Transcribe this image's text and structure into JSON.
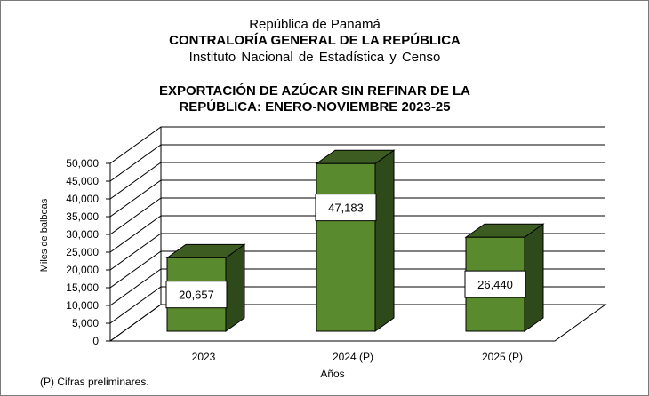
{
  "header": {
    "line1": "República de Panamá",
    "line2": "CONTRALORÍA GENERAL DE LA REPÚBLICA",
    "line3": "Instituto  Nacional de Estadística y Censo"
  },
  "footnote": "(P) Cifras  preliminares.",
  "colors": {
    "bar_front": "#5a8a2e",
    "bar_side": "#2f4a1a",
    "bar_top": "#3c5c22",
    "grid": "#000000"
  },
  "chart_data": {
    "type": "bar",
    "title_lines": [
      "EXPORTACIÓN DE AZÚCAR SIN REFINAR DE LA",
      "REPÚBLICA: ENERO-NOVIEMBRE 2023-25"
    ],
    "categories": [
      "2023",
      "2024 (P)",
      "2025 (P)"
    ],
    "values": [
      20657,
      47183,
      26440
    ],
    "value_labels": [
      "20,657",
      "47,183",
      "26,440"
    ],
    "xlabel": "Años",
    "ylabel": "Miles de balboas",
    "ylim": [
      0,
      50000
    ],
    "yticks": [
      0,
      5000,
      10000,
      15000,
      20000,
      25000,
      30000,
      35000,
      40000,
      45000,
      50000
    ],
    "ytick_labels": [
      "0",
      "5,000",
      "10,000",
      "15,000",
      "20,000",
      "25,000",
      "30,000",
      "35,000",
      "40,000",
      "45,000",
      "50,000"
    ],
    "grid": true,
    "style": "3d"
  }
}
